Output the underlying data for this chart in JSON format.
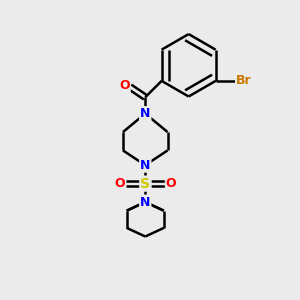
{
  "bg_color": "#ebebeb",
  "bond_color": "#000000",
  "N_color": "#0000ff",
  "O_color": "#ff0000",
  "S_color": "#cccc00",
  "Br_color": "#cc7700",
  "bond_width": 1.8,
  "figsize": [
    3.0,
    3.0
  ],
  "dpi": 100,
  "xlim": [
    0,
    10
  ],
  "ylim": [
    0,
    10
  ]
}
